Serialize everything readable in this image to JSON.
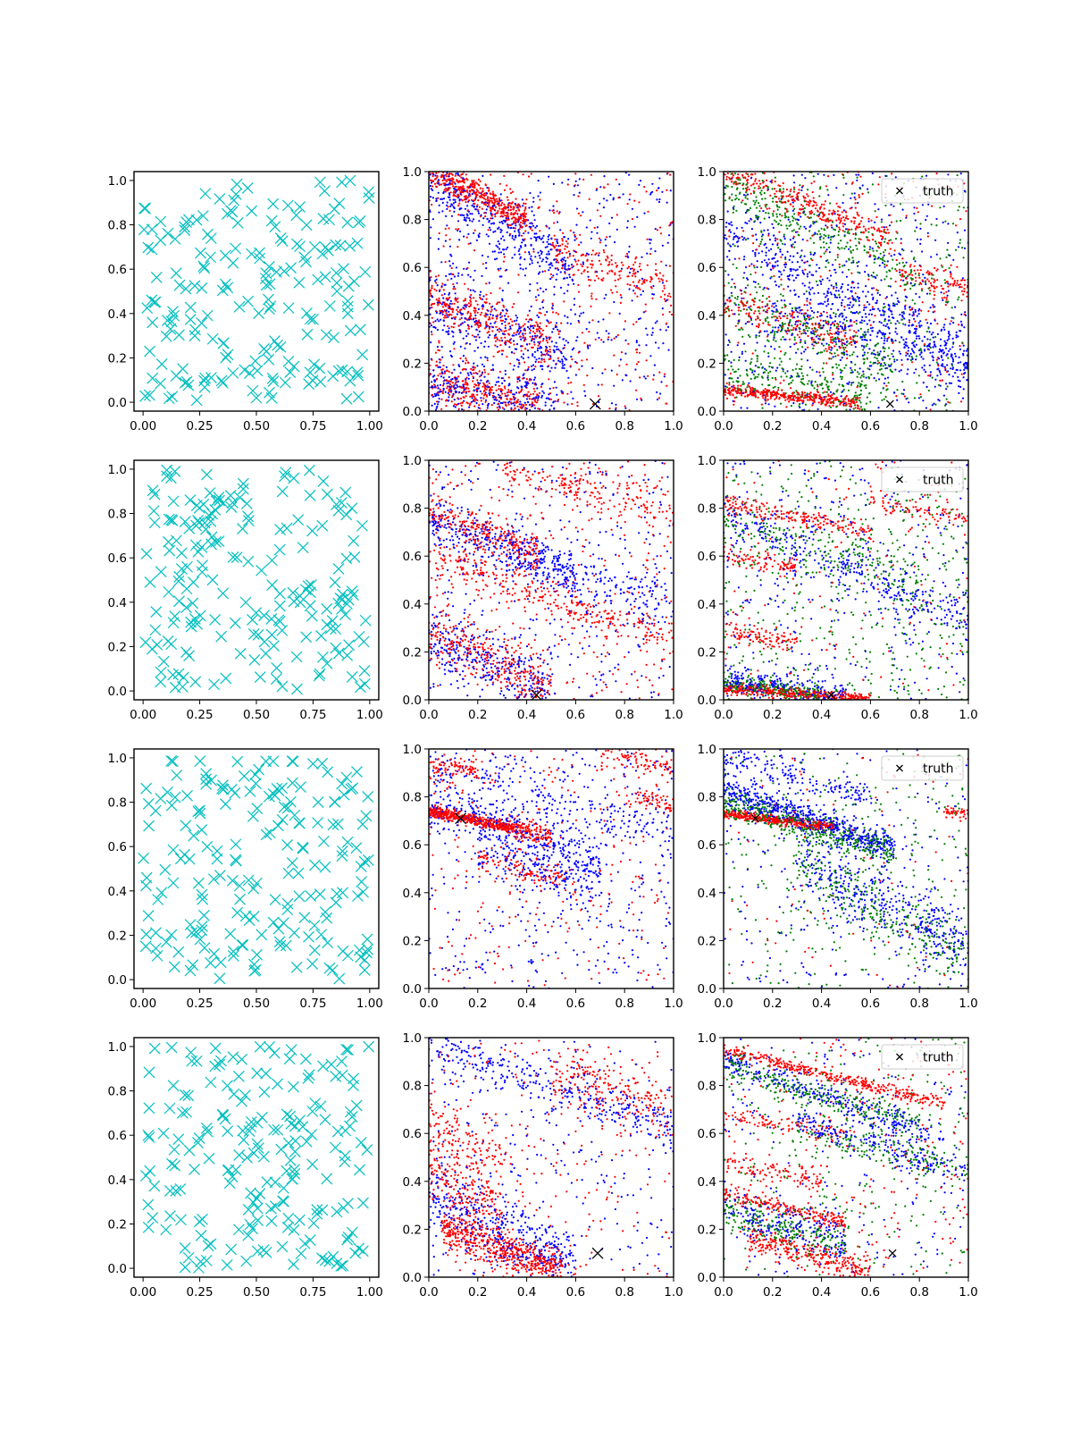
{
  "figure": {
    "rows": 4,
    "cols": 3
  },
  "colors": {
    "samples": "#00bfbf",
    "red": "#ff0000",
    "blue": "#0000ff",
    "green": "#008000",
    "truth": "#000000"
  },
  "legend": {
    "label": "truth"
  },
  "chart_data": [
    {
      "row": 0,
      "col": 0,
      "type": "scatter",
      "marker": "x",
      "xlim": [
        -0.04,
        1.04
      ],
      "ylim": [
        -0.04,
        1.04
      ],
      "xticks": [
        "0.00",
        "0.25",
        "0.50",
        "0.75",
        "1.00"
      ],
      "yticks": [
        "0.0",
        "0.2",
        "0.4",
        "0.6",
        "0.8",
        "1.0"
      ],
      "n_points": 200,
      "title": "",
      "xlabel": "",
      "ylabel": ""
    },
    {
      "row": 0,
      "col": 1,
      "type": "scatter",
      "xlim": [
        0,
        1
      ],
      "ylim": [
        0,
        1
      ],
      "xticks": [
        "0.0",
        "0.2",
        "0.4",
        "0.6",
        "0.8",
        "1.0"
      ],
      "yticks": [
        "0.0",
        "0.2",
        "0.4",
        "0.6",
        "0.8",
        "1.0"
      ],
      "truth": [
        0.68,
        0.03
      ],
      "legend": false,
      "bands": [
        {
          "color": "red",
          "x0": 0.0,
          "y0": 1.0,
          "slope": -0.5,
          "spread": 0.03,
          "xmax": 0.4,
          "n": 450
        },
        {
          "color": "red",
          "x0": 0.0,
          "y0": 0.47,
          "slope": -0.35,
          "spread": 0.05,
          "xmax": 0.5,
          "n": 300
        },
        {
          "color": "red",
          "x0": 0.0,
          "y0": 0.14,
          "slope": -0.25,
          "spread": 0.05,
          "xmax": 0.45,
          "n": 300
        },
        {
          "color": "red",
          "x0": 0.5,
          "y0": 0.68,
          "slope": -0.35,
          "spread": 0.04,
          "xmax": 1.0,
          "n": 180
        },
        {
          "color": "blue",
          "x0": 0.0,
          "y0": 0.95,
          "slope": -0.6,
          "spread": 0.06,
          "xmax": 0.6,
          "n": 350
        },
        {
          "color": "blue",
          "x0": 0.0,
          "y0": 0.45,
          "slope": -0.4,
          "spread": 0.07,
          "xmax": 0.6,
          "n": 300
        },
        {
          "color": "blue",
          "x0": 0.0,
          "y0": 0.12,
          "slope": -0.2,
          "spread": 0.06,
          "xmax": 0.55,
          "n": 300
        }
      ],
      "noise": {
        "red": 350,
        "blue": 450
      }
    },
    {
      "row": 0,
      "col": 2,
      "type": "scatter",
      "xlim": [
        0,
        1
      ],
      "ylim": [
        0,
        1
      ],
      "xticks": [
        "0.0",
        "0.2",
        "0.4",
        "0.6",
        "0.8",
        "1.0"
      ],
      "yticks": [
        "0.0",
        "0.2",
        "0.4",
        "0.6",
        "0.8",
        "1.0"
      ],
      "truth": [
        0.68,
        0.03
      ],
      "legend": true,
      "bands": [
        {
          "color": "red",
          "x0": 0.0,
          "y0": 0.09,
          "slope": -0.1,
          "spread": 0.012,
          "xmax": 0.55,
          "n": 350
        },
        {
          "color": "red",
          "x0": 0.0,
          "y0": 1.0,
          "slope": -0.4,
          "spread": 0.03,
          "xmax": 0.7,
          "n": 300
        },
        {
          "color": "red",
          "x0": 0.0,
          "y0": 0.45,
          "slope": -0.3,
          "spread": 0.04,
          "xmax": 0.55,
          "n": 200
        },
        {
          "color": "red",
          "x0": 0.7,
          "y0": 0.58,
          "slope": -0.2,
          "spread": 0.03,
          "xmax": 1.0,
          "n": 100
        },
        {
          "color": "green",
          "x0": 0.0,
          "y0": 0.95,
          "slope": -0.5,
          "spread": 0.05,
          "xmax": 0.8,
          "n": 250
        },
        {
          "color": "green",
          "x0": 0.0,
          "y0": 0.45,
          "slope": -0.35,
          "spread": 0.06,
          "xmax": 0.7,
          "n": 250
        },
        {
          "color": "green",
          "x0": 0.0,
          "y0": 0.18,
          "slope": -0.2,
          "spread": 0.05,
          "xmax": 0.6,
          "n": 200
        },
        {
          "color": "blue",
          "x0": 0.0,
          "y0": 0.75,
          "slope": -0.5,
          "spread": 0.07,
          "xmax": 1.0,
          "n": 350
        },
        {
          "color": "blue",
          "x0": 0.2,
          "y0": 0.45,
          "slope": -0.35,
          "spread": 0.08,
          "xmax": 1.0,
          "n": 350
        }
      ],
      "noise": {
        "red": 250,
        "blue": 500,
        "green": 350
      }
    },
    {
      "row": 1,
      "col": 0,
      "type": "scatter",
      "marker": "x",
      "xlim": [
        -0.04,
        1.04
      ],
      "ylim": [
        -0.04,
        1.04
      ],
      "xticks": [
        "0.00",
        "0.25",
        "0.50",
        "0.75",
        "1.00"
      ],
      "yticks": [
        "0.0",
        "0.2",
        "0.4",
        "0.6",
        "0.8",
        "1.0"
      ],
      "n_points": 200,
      "title": "",
      "xlabel": "",
      "ylabel": ""
    },
    {
      "row": 1,
      "col": 1,
      "type": "scatter",
      "xlim": [
        0,
        1
      ],
      "ylim": [
        0,
        1
      ],
      "xticks": [
        "0.0",
        "0.2",
        "0.4",
        "0.6",
        "0.8",
        "1.0"
      ],
      "yticks": [
        "0.0",
        "0.2",
        "0.4",
        "0.6",
        "0.8",
        "1.0"
      ],
      "truth": [
        0.44,
        0.02
      ],
      "legend": false,
      "bands": [
        {
          "color": "red",
          "x0": 0.0,
          "y0": 0.77,
          "slope": -0.35,
          "spread": 0.04,
          "xmax": 0.45,
          "n": 250
        },
        {
          "color": "red",
          "x0": 0.0,
          "y0": 0.6,
          "slope": -0.35,
          "spread": 0.04,
          "xmax": 1.0,
          "n": 300
        },
        {
          "color": "red",
          "x0": 0.0,
          "y0": 0.28,
          "slope": -0.45,
          "spread": 0.06,
          "xmax": 0.5,
          "n": 300
        },
        {
          "color": "red",
          "x0": 0.3,
          "y0": 0.98,
          "slope": -0.3,
          "spread": 0.04,
          "xmax": 1.0,
          "n": 180
        },
        {
          "color": "blue",
          "x0": 0.0,
          "y0": 0.76,
          "slope": -0.4,
          "spread": 0.05,
          "xmax": 0.6,
          "n": 300
        },
        {
          "color": "blue",
          "x0": 0.0,
          "y0": 0.26,
          "slope": -0.45,
          "spread": 0.07,
          "xmax": 0.5,
          "n": 300
        },
        {
          "color": "blue",
          "x0": 0.3,
          "y0": 0.6,
          "slope": -0.3,
          "spread": 0.06,
          "xmax": 1.0,
          "n": 200
        }
      ],
      "noise": {
        "red": 350,
        "blue": 350
      }
    },
    {
      "row": 1,
      "col": 2,
      "type": "scatter",
      "xlim": [
        0,
        1
      ],
      "ylim": [
        0,
        1
      ],
      "xticks": [
        "0.0",
        "0.2",
        "0.4",
        "0.6",
        "0.8",
        "1.0"
      ],
      "yticks": [
        "0.0",
        "0.2",
        "0.4",
        "0.6",
        "0.8",
        "1.0"
      ],
      "truth": [
        0.44,
        0.02
      ],
      "legend": true,
      "bands": [
        {
          "color": "red",
          "x0": 0.0,
          "y0": 0.05,
          "slope": -0.08,
          "spread": 0.01,
          "xmax": 0.6,
          "n": 400
        },
        {
          "color": "red",
          "x0": 0.0,
          "y0": 0.82,
          "slope": -0.2,
          "spread": 0.02,
          "xmax": 0.6,
          "n": 200
        },
        {
          "color": "red",
          "x0": 0.0,
          "y0": 0.6,
          "slope": -0.15,
          "spread": 0.02,
          "xmax": 0.3,
          "n": 100
        },
        {
          "color": "red",
          "x0": 0.0,
          "y0": 0.3,
          "slope": -0.2,
          "spread": 0.02,
          "xmax": 0.3,
          "n": 100
        },
        {
          "color": "red",
          "x0": 0.6,
          "y0": 0.82,
          "slope": -0.15,
          "spread": 0.02,
          "xmax": 1.0,
          "n": 80
        },
        {
          "color": "blue",
          "x0": 0.0,
          "y0": 0.08,
          "slope": -0.15,
          "spread": 0.03,
          "xmax": 0.5,
          "n": 250
        },
        {
          "color": "blue",
          "x0": 0.0,
          "y0": 0.78,
          "slope": -0.45,
          "spread": 0.05,
          "xmax": 1.0,
          "n": 300
        },
        {
          "color": "green",
          "x0": 0.0,
          "y0": 0.07,
          "slope": -0.12,
          "spread": 0.02,
          "xmax": 0.4,
          "n": 200
        },
        {
          "color": "green",
          "x0": 0.0,
          "y0": 0.75,
          "slope": -0.3,
          "spread": 0.05,
          "xmax": 0.8,
          "n": 200
        }
      ],
      "noise": {
        "red": 150,
        "blue": 350,
        "green": 450
      }
    },
    {
      "row": 2,
      "col": 0,
      "type": "scatter",
      "marker": "x",
      "xlim": [
        -0.04,
        1.04
      ],
      "ylim": [
        -0.04,
        1.04
      ],
      "xticks": [
        "0.00",
        "0.25",
        "0.50",
        "0.75",
        "1.00"
      ],
      "yticks": [
        "0.0",
        "0.2",
        "0.4",
        "0.6",
        "0.8",
        "1.0"
      ],
      "n_points": 200,
      "title": "",
      "xlabel": "",
      "ylabel": ""
    },
    {
      "row": 2,
      "col": 1,
      "type": "scatter",
      "xlim": [
        0,
        1
      ],
      "ylim": [
        0,
        1
      ],
      "xticks": [
        "0.0",
        "0.2",
        "0.4",
        "0.6",
        "0.8",
        "1.0"
      ],
      "yticks": [
        "0.0",
        "0.2",
        "0.4",
        "0.6",
        "0.8",
        "1.0"
      ],
      "truth": [
        0.13,
        0.71
      ],
      "legend": false,
      "bands": [
        {
          "color": "red",
          "x0": 0.0,
          "y0": 0.74,
          "slope": -0.2,
          "spread": 0.012,
          "xmax": 0.35,
          "n": 500
        },
        {
          "color": "red",
          "x0": 0.35,
          "y0": 0.67,
          "slope": -0.25,
          "spread": 0.025,
          "xmax": 0.5,
          "n": 120
        },
        {
          "color": "red",
          "x0": 0.2,
          "y0": 0.55,
          "slope": -0.3,
          "spread": 0.03,
          "xmax": 0.6,
          "n": 120
        },
        {
          "color": "red",
          "x0": 0.0,
          "y0": 0.92,
          "slope": 0.0,
          "spread": 0.02,
          "xmax": 0.2,
          "n": 80
        },
        {
          "color": "red",
          "x0": 0.7,
          "y0": 0.98,
          "slope": -0.2,
          "spread": 0.03,
          "xmax": 1.0,
          "n": 100
        },
        {
          "color": "red",
          "x0": 0.8,
          "y0": 0.8,
          "slope": -0.2,
          "spread": 0.02,
          "xmax": 1.0,
          "n": 60
        },
        {
          "color": "blue",
          "x0": 0.0,
          "y0": 0.78,
          "slope": -0.35,
          "spread": 0.05,
          "xmax": 0.7,
          "n": 300
        },
        {
          "color": "blue",
          "x0": 0.2,
          "y0": 0.6,
          "slope": -0.35,
          "spread": 0.06,
          "xmax": 0.7,
          "n": 200
        },
        {
          "color": "blue",
          "x0": 0.0,
          "y0": 0.95,
          "slope": -0.3,
          "spread": 0.05,
          "xmax": 1.0,
          "n": 200
        }
      ],
      "noise": {
        "red": 250,
        "blue": 400
      }
    },
    {
      "row": 2,
      "col": 2,
      "type": "scatter",
      "xlim": [
        0,
        1
      ],
      "ylim": [
        0,
        1
      ],
      "xticks": [
        "0.0",
        "0.2",
        "0.4",
        "0.6",
        "0.8",
        "1.0"
      ],
      "yticks": [
        "0.0",
        "0.2",
        "0.4",
        "0.6",
        "0.8",
        "1.0"
      ],
      "truth": [
        0.13,
        0.71
      ],
      "legend": true,
      "bands": [
        {
          "color": "red",
          "x0": 0.0,
          "y0": 0.73,
          "slope": -0.12,
          "spread": 0.01,
          "xmax": 0.45,
          "n": 400
        },
        {
          "color": "red",
          "x0": 0.9,
          "y0": 0.74,
          "slope": -0.1,
          "spread": 0.01,
          "xmax": 1.0,
          "n": 40
        },
        {
          "color": "blue",
          "x0": 0.0,
          "y0": 0.83,
          "slope": -0.35,
          "spread": 0.03,
          "xmax": 0.7,
          "n": 550
        },
        {
          "color": "blue",
          "x0": 0.3,
          "y0": 0.55,
          "slope": -0.55,
          "spread": 0.08,
          "xmax": 1.0,
          "n": 400
        },
        {
          "color": "blue",
          "x0": 0.0,
          "y0": 0.97,
          "slope": -0.3,
          "spread": 0.03,
          "xmax": 0.6,
          "n": 150
        },
        {
          "color": "green",
          "x0": 0.0,
          "y0": 0.78,
          "slope": -0.3,
          "spread": 0.03,
          "xmax": 0.7,
          "n": 400
        },
        {
          "color": "green",
          "x0": 0.3,
          "y0": 0.5,
          "slope": -0.5,
          "spread": 0.08,
          "xmax": 1.0,
          "n": 250
        }
      ],
      "noise": {
        "red": 80,
        "blue": 250,
        "green": 300
      }
    },
    {
      "row": 3,
      "col": 0,
      "type": "scatter",
      "marker": "x",
      "xlim": [
        -0.04,
        1.04
      ],
      "ylim": [
        -0.04,
        1.04
      ],
      "xticks": [
        "0.00",
        "0.25",
        "0.50",
        "0.75",
        "1.00"
      ],
      "yticks": [
        "0.0",
        "0.2",
        "0.4",
        "0.6",
        "0.8",
        "1.0"
      ],
      "n_points": 200,
      "title": "",
      "xlabel": "",
      "ylabel": ""
    },
    {
      "row": 3,
      "col": 1,
      "type": "scatter",
      "xlim": [
        0,
        1
      ],
      "ylim": [
        0,
        1
      ],
      "xticks": [
        "0.0",
        "0.2",
        "0.4",
        "0.6",
        "0.8",
        "1.0"
      ],
      "yticks": [
        "0.0",
        "0.2",
        "0.4",
        "0.6",
        "0.8",
        "1.0"
      ],
      "truth": [
        0.69,
        0.1
      ],
      "legend": false,
      "bands": [
        {
          "color": "red",
          "x0": 0.05,
          "y0": 0.2,
          "slope": -0.35,
          "spread": 0.04,
          "xmax": 0.55,
          "n": 550
        },
        {
          "color": "red",
          "x0": 0.0,
          "y0": 0.45,
          "slope": -0.6,
          "spread": 0.06,
          "xmax": 0.3,
          "n": 200
        },
        {
          "color": "red",
          "x0": 0.0,
          "y0": 0.65,
          "slope": -0.6,
          "spread": 0.05,
          "xmax": 0.3,
          "n": 120
        },
        {
          "color": "red",
          "x0": 0.5,
          "y0": 0.85,
          "slope": -0.3,
          "spread": 0.06,
          "xmax": 1.0,
          "n": 200
        },
        {
          "color": "blue",
          "x0": 0.0,
          "y0": 0.35,
          "slope": -0.5,
          "spread": 0.07,
          "xmax": 0.6,
          "n": 400
        },
        {
          "color": "blue",
          "x0": 0.0,
          "y0": 0.97,
          "slope": -0.35,
          "spread": 0.05,
          "xmax": 1.0,
          "n": 300
        }
      ],
      "noise": {
        "red": 250,
        "blue": 300
      }
    },
    {
      "row": 3,
      "col": 2,
      "type": "scatter",
      "xlim": [
        0,
        1
      ],
      "ylim": [
        0,
        1
      ],
      "xticks": [
        "0.0",
        "0.2",
        "0.4",
        "0.6",
        "0.8",
        "1.0"
      ],
      "yticks": [
        "0.0",
        "0.2",
        "0.4",
        "0.6",
        "0.8",
        "1.0"
      ],
      "truth": [
        0.69,
        0.1
      ],
      "legend": true,
      "bands": [
        {
          "color": "red",
          "x0": 0.0,
          "y0": 0.95,
          "slope": -0.25,
          "spread": 0.012,
          "xmax": 0.9,
          "n": 350
        },
        {
          "color": "red",
          "x0": 0.0,
          "y0": 0.35,
          "slope": -0.25,
          "spread": 0.015,
          "xmax": 0.5,
          "n": 200
        },
        {
          "color": "red",
          "x0": 0.1,
          "y0": 0.17,
          "slope": -0.3,
          "spread": 0.03,
          "xmax": 0.6,
          "n": 300
        },
        {
          "color": "red",
          "x0": 0.0,
          "y0": 0.48,
          "slope": -0.2,
          "spread": 0.02,
          "xmax": 0.4,
          "n": 100
        },
        {
          "color": "red",
          "x0": 0.0,
          "y0": 0.67,
          "slope": -0.15,
          "spread": 0.02,
          "xmax": 0.5,
          "n": 100
        },
        {
          "color": "blue",
          "x0": 0.0,
          "y0": 0.9,
          "slope": -0.35,
          "spread": 0.03,
          "xmax": 0.9,
          "n": 300
        },
        {
          "color": "blue",
          "x0": 0.3,
          "y0": 0.65,
          "slope": -0.3,
          "spread": 0.03,
          "xmax": 1.0,
          "n": 200
        },
        {
          "color": "blue",
          "x0": 0.0,
          "y0": 0.3,
          "slope": -0.3,
          "spread": 0.05,
          "xmax": 0.5,
          "n": 200
        },
        {
          "color": "green",
          "x0": 0.0,
          "y0": 0.88,
          "slope": -0.3,
          "spread": 0.03,
          "xmax": 0.8,
          "n": 250
        },
        {
          "color": "green",
          "x0": 0.0,
          "y0": 0.28,
          "slope": -0.3,
          "spread": 0.04,
          "xmax": 0.5,
          "n": 200
        },
        {
          "color": "green",
          "x0": 0.3,
          "y0": 0.62,
          "slope": -0.25,
          "spread": 0.04,
          "xmax": 1.0,
          "n": 150
        }
      ],
      "noise": {
        "red": 250,
        "blue": 200,
        "green": 250
      }
    }
  ]
}
